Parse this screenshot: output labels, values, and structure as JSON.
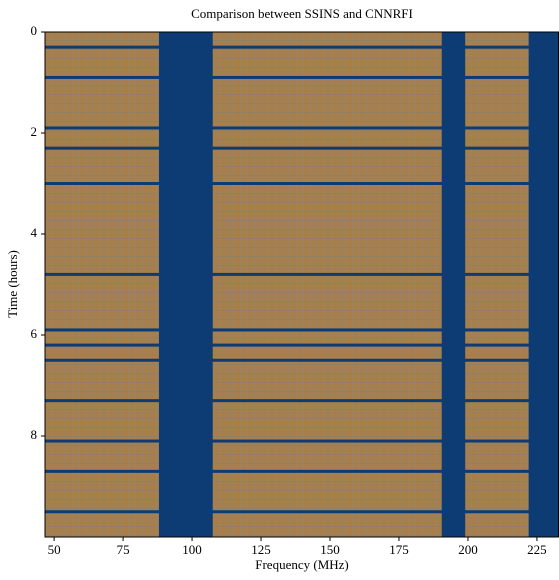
{
  "chart_data": {
    "type": "heatmap",
    "title": "Comparison between SSINS and CNNRFI",
    "xlabel": "Frequency (MHz)",
    "ylabel": "Time (hours)",
    "xlim": [
      46.7,
      233
    ],
    "xticks": [
      50,
      75,
      100,
      125,
      150,
      175,
      200,
      225
    ],
    "ylim": [
      10,
      0
    ],
    "yticks": [
      0,
      2,
      4,
      6,
      8
    ],
    "background_color": "#a67f4c",
    "flag_color": "#0d3b73",
    "flag_bands": [
      {
        "start": 88,
        "end": 107.5
      },
      {
        "start": 190.5,
        "end": 199
      },
      {
        "start": 222,
        "end": 233
      }
    ],
    "flag_times": [
      0.3,
      0.9,
      1.9,
      2.3,
      3.0,
      4.8,
      5.9,
      6.2,
      6.5,
      7.3,
      8.1,
      8.7,
      9.5
    ]
  }
}
